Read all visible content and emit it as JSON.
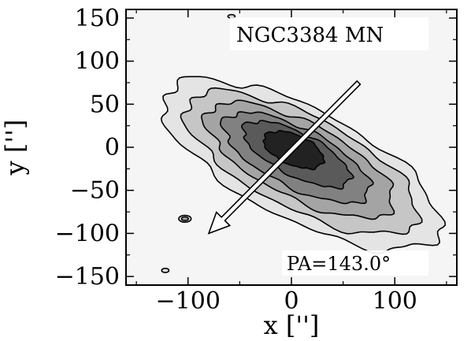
{
  "chart_data": {
    "type": "contour",
    "title": "",
    "xlabel": "x ['']",
    "ylabel": "y ['']",
    "xlim": [
      -160,
      160
    ],
    "ylim": [
      -160,
      160
    ],
    "xticks": [
      -100,
      0,
      100
    ],
    "xtick_labels": [
      "−100",
      "0",
      "100"
    ],
    "yticks": [
      150,
      100,
      50,
      0,
      -50,
      -100,
      -150
    ],
    "ytick_labels": [
      "150",
      "100",
      "50",
      "0",
      "−50",
      "−100",
      "−150"
    ],
    "grid": false,
    "annotations": {
      "object_name": "NGC3384 MN",
      "position_angle": "PA=143.0°"
    },
    "arrow": {
      "start": [
        65,
        75
      ],
      "end": [
        -80,
        -100
      ]
    },
    "contour_levels": [
      {
        "level": 1,
        "center": [
          10,
          -20
        ],
        "semi_major": 155,
        "semi_minor": 62,
        "angle_deg": -33,
        "fill": "#e4e4e4"
      },
      {
        "level": 2,
        "center": [
          10,
          -18
        ],
        "semi_major": 130,
        "semi_minor": 52,
        "angle_deg": -33,
        "fill": "#c6c6c6"
      },
      {
        "level": 3,
        "center": [
          8,
          -15
        ],
        "semi_major": 105,
        "semi_minor": 42,
        "angle_deg": -33,
        "fill": "#a4a4a4"
      },
      {
        "level": 4,
        "center": [
          5,
          -12
        ],
        "semi_major": 82,
        "semi_minor": 33,
        "angle_deg": -33,
        "fill": "#818181"
      },
      {
        "level": 5,
        "center": [
          5,
          -8
        ],
        "semi_major": 60,
        "semi_minor": 24,
        "angle_deg": -33,
        "fill": "#5a5a5a"
      },
      {
        "level": 6,
        "center": [
          2,
          -3
        ],
        "semi_major": 32,
        "semi_minor": 17,
        "angle_deg": -30,
        "fill": "#222222"
      }
    ],
    "blobs": [
      {
        "center": [
          -103,
          -83
        ],
        "rx": 6,
        "ry": 4,
        "rings": 2
      },
      {
        "center": [
          -58,
          152
        ],
        "rx": 3.5,
        "ry": 2,
        "rings": 1
      },
      {
        "center": [
          -122,
          -143
        ],
        "rx": 3.5,
        "ry": 2.5,
        "rings": 1
      }
    ],
    "background_fill": "#f5f5f5"
  }
}
